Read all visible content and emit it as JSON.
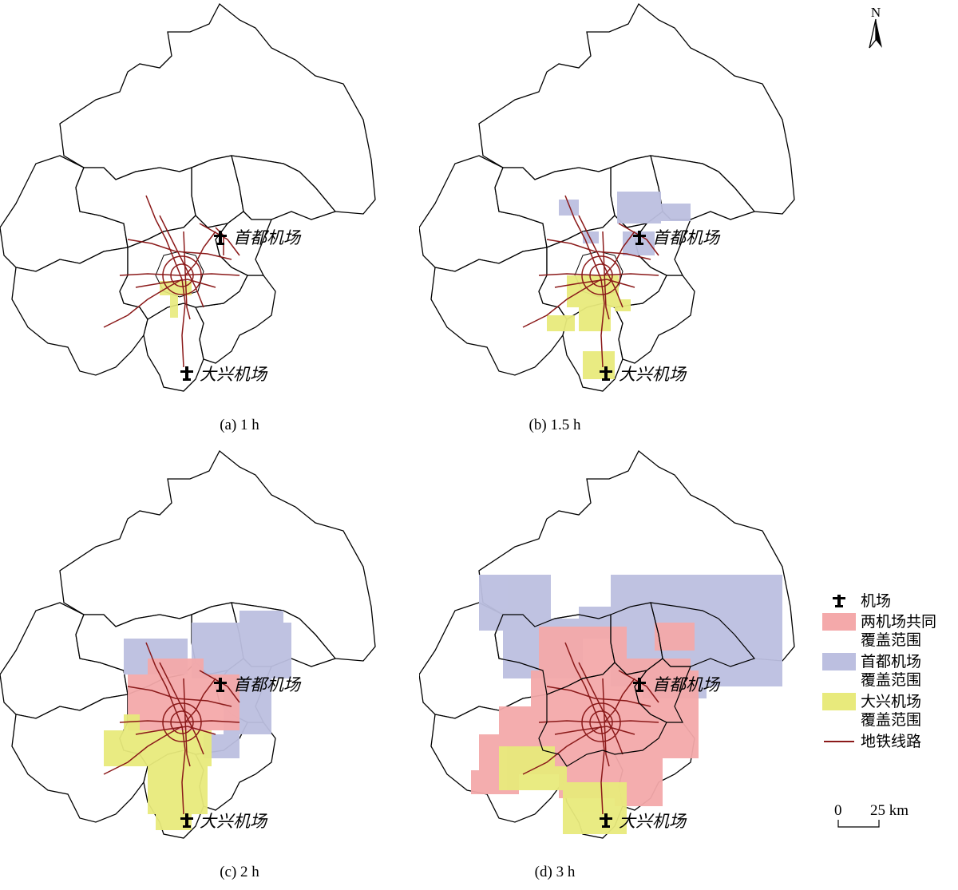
{
  "panels": [
    {
      "id": "a",
      "caption": "(a) 1 h"
    },
    {
      "id": "b",
      "caption": "(b) 1.5 h"
    },
    {
      "id": "c",
      "caption": "(c) 2 h"
    },
    {
      "id": "d",
      "caption": "(d) 3 h"
    }
  ],
  "airports": {
    "capital": "首都机场",
    "daxing": "大兴机场"
  },
  "north_label": "N",
  "legend": {
    "airport": "机场",
    "both_line1": "两机场共同",
    "both_line2": "覆盖范围",
    "capital_line1": "首都机场",
    "capital_line2": "覆盖范围",
    "daxing_line1": "大兴机场",
    "daxing_line2": "覆盖范围",
    "subway": "地铁线路"
  },
  "scale": {
    "zero": "0",
    "value": "25 km"
  },
  "colors": {
    "both": "#f4a9aa",
    "capital": "#bcbfe0",
    "daxing": "#e8ea7c",
    "subway": "#8b1a1a",
    "boundary": "#000000"
  }
}
